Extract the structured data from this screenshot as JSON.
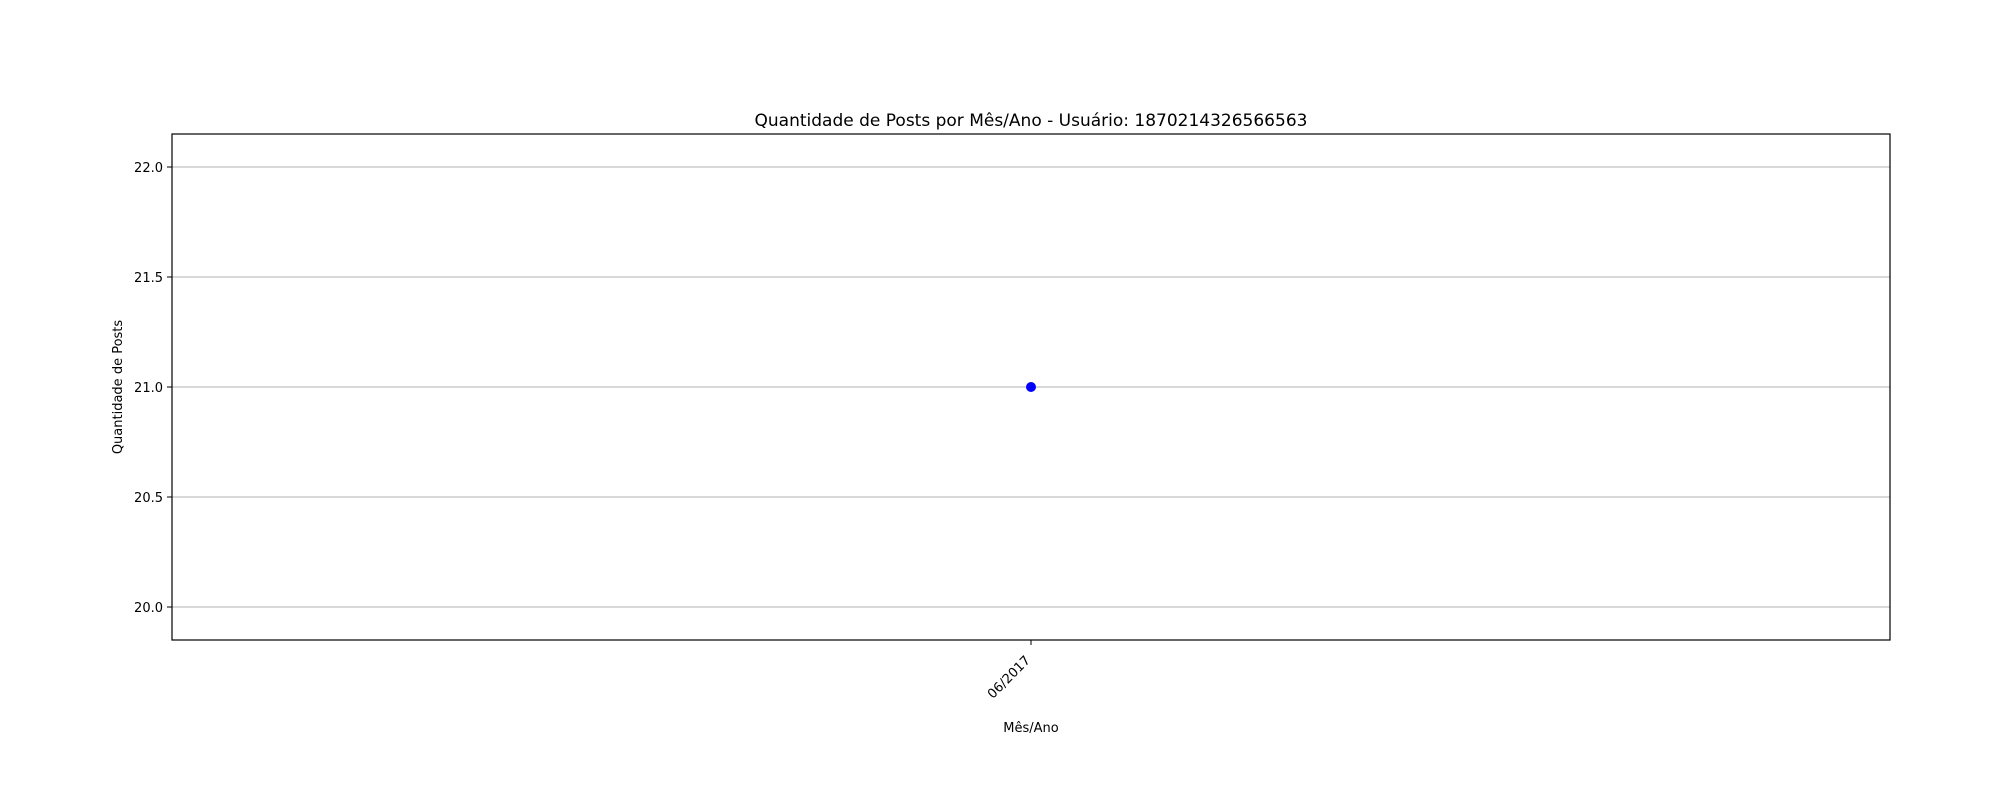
{
  "chart_data": {
    "type": "scatter",
    "title": "Quantidade de Posts por Mês/Ano - Usuário: 1870214326566563",
    "xlabel": "Mês/Ano",
    "ylabel": "Quantidade de Posts",
    "categories": [
      "06/2017"
    ],
    "series": [
      {
        "values": [
          21
        ],
        "color": "#0000ff"
      }
    ],
    "ylim": [
      19.85,
      22.15
    ],
    "yticks": [
      20.0,
      20.5,
      21.0,
      21.5,
      22.0
    ],
    "ytick_labels": [
      "20.0",
      "20.5",
      "21.0",
      "21.5",
      "22.0"
    ],
    "grid": "horizontal",
    "grid_color": "#b0b0b0"
  }
}
